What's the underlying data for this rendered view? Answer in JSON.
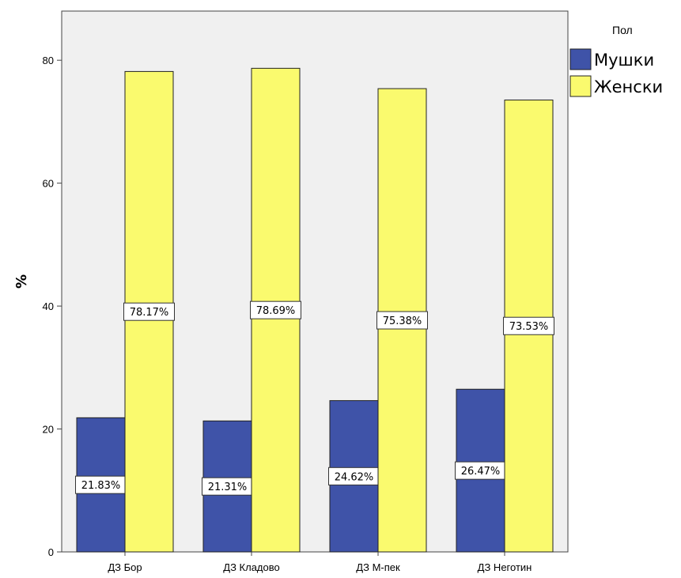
{
  "chart_data": {
    "type": "bar",
    "categories": [
      "ДЗ Бор",
      "ДЗ Кладово",
      "ДЗ М-пек",
      "ДЗ Неготин"
    ],
    "series": [
      {
        "name": "Мушки",
        "values": [
          21.83,
          21.31,
          24.62,
          26.47
        ],
        "labels": [
          "21.83%",
          "21.31%",
          "24.62%",
          "26.47%"
        ],
        "color": "#3F53A8"
      },
      {
        "name": "Женски",
        "values": [
          78.17,
          78.69,
          75.38,
          73.53
        ],
        "labels": [
          "78.17%",
          "78.69%",
          "75.38%",
          "73.53%"
        ],
        "color": "#FAFA6E"
      }
    ],
    "title": "",
    "xlabel": "",
    "ylabel": "%",
    "ylim": [
      0,
      88
    ],
    "yticks": [
      0,
      20,
      40,
      60,
      80
    ],
    "legend": {
      "title": "Пол",
      "placement": "right"
    },
    "grid": false,
    "plot_background": "#F0F0F0"
  }
}
